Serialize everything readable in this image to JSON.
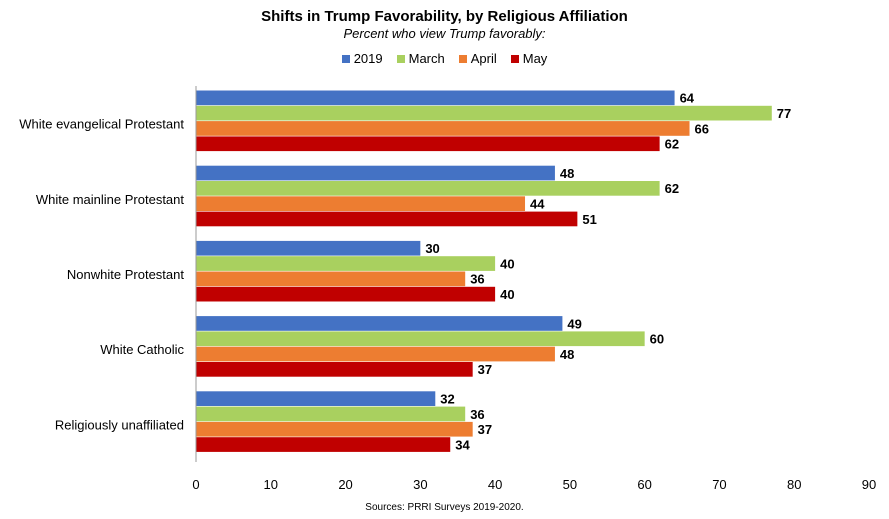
{
  "chart_data": {
    "type": "bar",
    "orientation": "horizontal",
    "title": "Shifts in Trump Favorability, by Religious Affiliation",
    "subtitle": "Percent who view Trump favorably:",
    "categories": [
      "White evangelical Protestant",
      "White mainline Protestant",
      "Nonwhite Protestant",
      "White Catholic",
      "Religiously unaffiliated"
    ],
    "series": [
      {
        "name": "2019",
        "color": "#4472C4",
        "values": [
          64,
          48,
          30,
          49,
          32
        ]
      },
      {
        "name": "March",
        "color": "#A9D05F",
        "values": [
          77,
          62,
          40,
          60,
          36
        ]
      },
      {
        "name": "April",
        "color": "#ED7D31",
        "values": [
          66,
          44,
          36,
          48,
          37
        ]
      },
      {
        "name": "May",
        "color": "#C00000",
        "values": [
          62,
          51,
          40,
          37,
          34
        ]
      }
    ],
    "xlim": [
      0,
      90
    ],
    "xticks": [
      "0",
      "10",
      "20",
      "30",
      "40",
      "50",
      "60",
      "70",
      "80",
      "90"
    ],
    "grid": false,
    "legend_position": "top",
    "source": "Sources: PRRI Surveys 2019-2020."
  }
}
